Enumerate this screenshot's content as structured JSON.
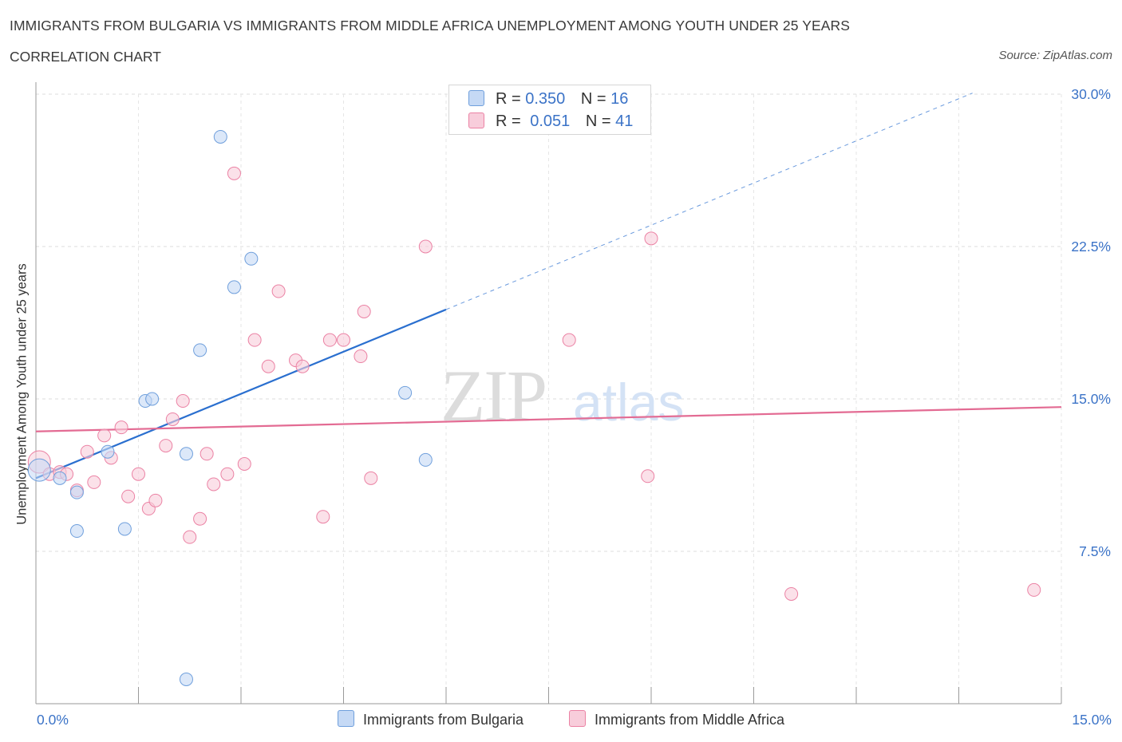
{
  "header": {
    "title": "IMMIGRANTS FROM BULGARIA VS IMMIGRANTS FROM MIDDLE AFRICA UNEMPLOYMENT AMONG YOUTH UNDER 25 YEARS",
    "subtitle": "CORRELATION CHART",
    "source": "Source: ZipAtlas.com"
  },
  "legend": {
    "row1": {
      "r_label": "R =",
      "r_value": "0.350",
      "n_label": "N =",
      "n_value": "16"
    },
    "row2": {
      "r_label": "R =",
      "r_value": "0.051",
      "n_label": "N =",
      "n_value": "41"
    }
  },
  "watermark": {
    "zip": "ZIP",
    "atlas": "atlas"
  },
  "chart_data": {
    "type": "scatter",
    "title": "IMMIGRANTS FROM BULGARIA VS IMMIGRANTS FROM MIDDLE AFRICA UNEMPLOYMENT AMONG YOUTH UNDER 25 YEARS",
    "xlabel": "",
    "ylabel": "Unemployment Among Youth under 25 years",
    "xlim": [
      0,
      15
    ],
    "ylim": [
      0,
      30
    ],
    "x_tick_labels": [
      "0.0%",
      "15.0%"
    ],
    "y_ticks": [
      7.5,
      15,
      22.5,
      30
    ],
    "y_tick_labels": [
      "7.5%",
      "15.0%",
      "22.5%",
      "30.0%"
    ],
    "grid": true,
    "legend_position": "top-center",
    "colors": {
      "bulgaria": "#6f9fdc",
      "bulgaria_fill": "#c5d9f5",
      "middle_africa": "#eb82a4",
      "middle_africa_fill": "#f8cddb",
      "blue_line": "#2a6fcf",
      "pink_line": "#e36b93"
    },
    "series": [
      {
        "name": "Immigrants from Bulgaria",
        "r": 0.35,
        "n": 16,
        "trend": {
          "x0": 0,
          "y0": 11.1,
          "x1": 6.0,
          "y1": 19.4,
          "dash_to_x": 13.7
        },
        "points": [
          [
            0.05,
            11.5
          ],
          [
            0.35,
            11.1
          ],
          [
            0.6,
            10.4
          ],
          [
            0.6,
            8.5
          ],
          [
            1.05,
            12.4
          ],
          [
            1.3,
            8.6
          ],
          [
            1.6,
            14.9
          ],
          [
            1.7,
            15.0
          ],
          [
            2.2,
            1.2
          ],
          [
            2.2,
            12.3
          ],
          [
            2.4,
            17.4
          ],
          [
            2.7,
            27.9
          ],
          [
            2.9,
            20.5
          ],
          [
            3.15,
            21.9
          ],
          [
            5.4,
            15.3
          ],
          [
            5.7,
            12.0
          ]
        ]
      },
      {
        "name": "Immigrants from Middle Africa",
        "r": 0.051,
        "n": 41,
        "trend": {
          "x0": 0,
          "y0": 13.4,
          "x1": 15,
          "y1": 14.6
        },
        "points": [
          [
            0.05,
            11.9
          ],
          [
            0.2,
            11.3
          ],
          [
            0.35,
            11.4
          ],
          [
            0.45,
            11.3
          ],
          [
            0.6,
            10.5
          ],
          [
            0.75,
            12.4
          ],
          [
            0.85,
            10.9
          ],
          [
            1.0,
            13.2
          ],
          [
            1.1,
            12.1
          ],
          [
            1.25,
            13.6
          ],
          [
            1.35,
            10.2
          ],
          [
            1.5,
            11.3
          ],
          [
            1.65,
            9.6
          ],
          [
            1.75,
            10.0
          ],
          [
            1.9,
            12.7
          ],
          [
            2.0,
            14.0
          ],
          [
            2.15,
            14.9
          ],
          [
            2.25,
            8.2
          ],
          [
            2.4,
            9.1
          ],
          [
            2.5,
            12.3
          ],
          [
            2.6,
            10.8
          ],
          [
            2.8,
            11.3
          ],
          [
            2.9,
            26.1
          ],
          [
            3.05,
            11.8
          ],
          [
            3.2,
            17.9
          ],
          [
            3.4,
            16.6
          ],
          [
            3.55,
            20.3
          ],
          [
            3.8,
            16.9
          ],
          [
            3.9,
            16.6
          ],
          [
            4.2,
            9.2
          ],
          [
            4.3,
            17.9
          ],
          [
            4.5,
            17.9
          ],
          [
            4.75,
            17.1
          ],
          [
            4.8,
            19.3
          ],
          [
            4.9,
            11.1
          ],
          [
            5.7,
            22.5
          ],
          [
            7.8,
            17.9
          ],
          [
            8.95,
            11.2
          ],
          [
            9.0,
            22.9
          ],
          [
            11.05,
            5.4
          ],
          [
            14.6,
            5.6
          ]
        ]
      }
    ]
  }
}
